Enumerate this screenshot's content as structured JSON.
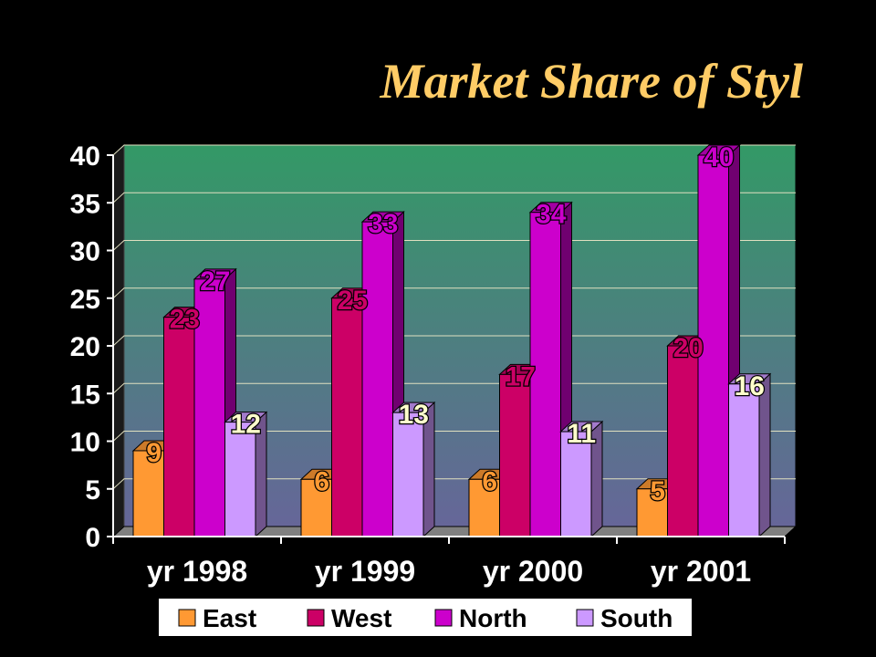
{
  "slide": {
    "title": "Market Share of Styl",
    "title_color": "#FFCC66",
    "background": "#000000"
  },
  "chart_data": {
    "type": "bar",
    "title": "",
    "xlabel": "",
    "ylabel": "",
    "ylim": [
      0,
      40
    ],
    "y_ticks": [
      0,
      5,
      10,
      15,
      20,
      25,
      30,
      35,
      40
    ],
    "grid": true,
    "style": "3d-clustered-column",
    "legend_position": "bottom",
    "categories": [
      "yr 1998",
      "yr 1999",
      "yr 2000",
      "yr 2001"
    ],
    "series": [
      {
        "name": "East",
        "color": "#FF9933",
        "values": [
          9,
          6,
          6,
          5
        ]
      },
      {
        "name": "West",
        "color": "#CC0066",
        "values": [
          23,
          25,
          17,
          20
        ]
      },
      {
        "name": "North",
        "color": "#CC00CC",
        "values": [
          27,
          33,
          34,
          40
        ]
      },
      {
        "name": "South",
        "color": "#CC99FF",
        "values": [
          12,
          13,
          11,
          16
        ]
      }
    ],
    "data_label_color": "#FFFFCC",
    "plot_gradient": [
      "#339966",
      "#666699"
    ]
  }
}
